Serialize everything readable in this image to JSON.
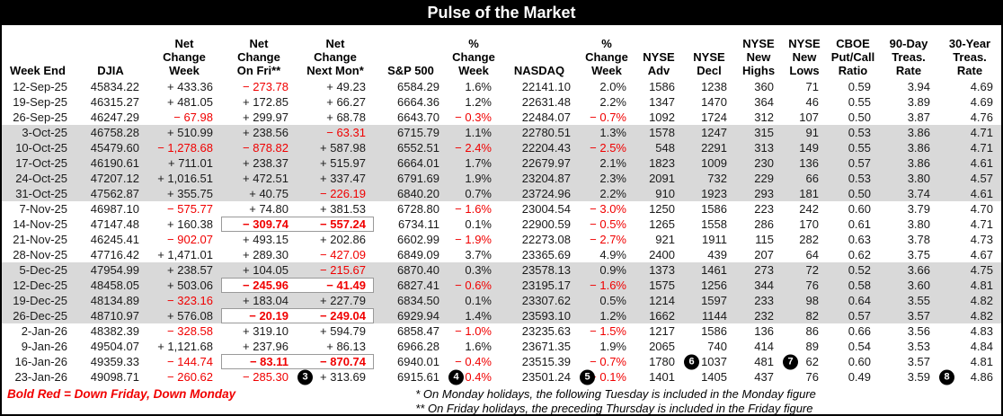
{
  "title": "Pulse of the Market",
  "legend": "Bold Red = Down Friday, Down Monday",
  "footnotes": [
    "* On Monday holidays, the following Tuesday is included in the Monday figure",
    "** On Friday holidays, the preceding Thursday is included in the Friday figure"
  ],
  "colors": {
    "negative_red": "#f00000",
    "month_shade": "#d9d9d9",
    "title_bar_bg": "#000000",
    "title_bar_fg": "#ffffff",
    "badge_bg": "#000000",
    "dfdm_box_border": "#9a9a9a"
  },
  "table": {
    "columns": [
      {
        "id": "week-end",
        "label": "Week End"
      },
      {
        "id": "djia",
        "label": "DJIA"
      },
      {
        "id": "net-change-week",
        "label": "Net\nChange\nWeek"
      },
      {
        "id": "net-change-on-fri",
        "label": "Net\nChange\nOn Fri**"
      },
      {
        "id": "net-change-next-mon",
        "label": "Net\nChange\nNext Mon*"
      },
      {
        "id": "sp500",
        "label": "S&P 500"
      },
      {
        "id": "sp500-pct-change-week",
        "label": "%\nChange\nWeek"
      },
      {
        "id": "nasdaq",
        "label": "NASDAQ"
      },
      {
        "id": "nasdaq-pct-change-week",
        "label": "%\nChange\nWeek"
      },
      {
        "id": "nyse-adv",
        "label": "NYSE\nAdv"
      },
      {
        "id": "nyse-decl",
        "label": "NYSE\nDecl"
      },
      {
        "id": "nyse-new-highs",
        "label": "NYSE\nNew\nHighs"
      },
      {
        "id": "nyse-new-lows",
        "label": "NYSE\nNew\nLows"
      },
      {
        "id": "cboe-put-call-ratio",
        "label": "CBOE\nPut/Call\nRatio"
      },
      {
        "id": "treas-90-day",
        "label": "90-Day\nTreas.\nRate"
      },
      {
        "id": "treas-30-year",
        "label": "30-Year\nTreas.\nRate"
      }
    ],
    "rows": [
      {
        "date": "12-Sep-25",
        "shade": false,
        "cells": [
          "45834.22",
          "+ 433.36",
          "− 273.78",
          "+ 49.23",
          "6584.29",
          "1.6%",
          "22141.10",
          "2.0%",
          "1586",
          "1238",
          "360",
          "71",
          "0.59",
          "3.94",
          "4.69"
        ]
      },
      {
        "date": "19-Sep-25",
        "shade": false,
        "cells": [
          "46315.27",
          "+ 481.05",
          "+ 172.85",
          "+ 66.27",
          "6664.36",
          "1.2%",
          "22631.48",
          "2.2%",
          "1347",
          "1470",
          "364",
          "46",
          "0.55",
          "3.89",
          "4.69"
        ]
      },
      {
        "date": "26-Sep-25",
        "shade": false,
        "cells": [
          "46247.29",
          "− 67.98",
          "+ 299.97",
          "+ 68.78",
          "6643.70",
          "− 0.3%",
          "22484.07",
          "− 0.7%",
          "1092",
          "1724",
          "312",
          "107",
          "0.50",
          "3.87",
          "4.76"
        ]
      },
      {
        "date": "3-Oct-25",
        "shade": true,
        "cells": [
          "46758.28",
          "+ 510.99",
          "+ 238.56",
          "− 63.31",
          "6715.79",
          "1.1%",
          "22780.51",
          "1.3%",
          "1578",
          "1247",
          "315",
          "91",
          "0.53",
          "3.86",
          "4.71"
        ]
      },
      {
        "date": "10-Oct-25",
        "shade": true,
        "cells": [
          "45479.60",
          "− 1,278.68",
          "− 878.82",
          "+ 587.98",
          "6552.51",
          "− 2.4%",
          "22204.43",
          "− 2.5%",
          "548",
          "2291",
          "313",
          "149",
          "0.55",
          "3.86",
          "4.71"
        ]
      },
      {
        "date": "17-Oct-25",
        "shade": true,
        "cells": [
          "46190.61",
          "+ 711.01",
          "+ 238.37",
          "+ 515.97",
          "6664.01",
          "1.7%",
          "22679.97",
          "2.1%",
          "1823",
          "1009",
          "230",
          "136",
          "0.57",
          "3.86",
          "4.61"
        ]
      },
      {
        "date": "24-Oct-25",
        "shade": true,
        "cells": [
          "47207.12",
          "+ 1,016.51",
          "+ 472.51",
          "+ 337.47",
          "6791.69",
          "1.9%",
          "23204.87",
          "2.3%",
          "2091",
          "732",
          "229",
          "66",
          "0.53",
          "3.80",
          "4.57"
        ]
      },
      {
        "date": "31-Oct-25",
        "shade": true,
        "cells": [
          "47562.87",
          "+ 355.75",
          "+ 40.75",
          "− 226.19",
          "6840.20",
          "0.7%",
          "23724.96",
          "2.2%",
          "910",
          "1923",
          "293",
          "181",
          "0.50",
          "3.74",
          "4.61"
        ]
      },
      {
        "date": "7-Nov-25",
        "shade": false,
        "cells": [
          "46987.10",
          "− 575.77",
          "+ 74.80",
          "+ 381.53",
          "6728.80",
          "− 1.6%",
          "23004.54",
          "− 3.0%",
          "1250",
          "1586",
          "223",
          "242",
          "0.60",
          "3.79",
          "4.70"
        ]
      },
      {
        "date": "14-Nov-25",
        "shade": false,
        "cells": [
          "47147.48",
          "+ 160.38",
          {
            "t": "− 309.74",
            "box": "l"
          },
          {
            "t": "− 557.24",
            "box": "r"
          },
          "6734.11",
          "0.1%",
          "22900.59",
          "− 0.5%",
          "1265",
          "1558",
          "286",
          "170",
          "0.61",
          "3.80",
          "4.71"
        ]
      },
      {
        "date": "21-Nov-25",
        "shade": false,
        "cells": [
          "46245.41",
          "− 902.07",
          "+ 493.15",
          "+ 202.86",
          "6602.99",
          "− 1.9%",
          "22273.08",
          "− 2.7%",
          "921",
          "1911",
          "115",
          "282",
          "0.63",
          "3.78",
          "4.73"
        ]
      },
      {
        "date": "28-Nov-25",
        "shade": false,
        "cells": [
          "47716.42",
          "+ 1,471.01",
          "+ 289.30",
          "− 427.09",
          "6849.09",
          "3.7%",
          "23365.69",
          "4.9%",
          "2400",
          "439",
          "207",
          "64",
          "0.62",
          "3.75",
          "4.67"
        ]
      },
      {
        "date": "5-Dec-25",
        "shade": true,
        "cells": [
          "47954.99",
          "+ 238.57",
          "+ 104.05",
          "− 215.67",
          "6870.40",
          "0.3%",
          "23578.13",
          "0.9%",
          "1373",
          "1461",
          "273",
          "72",
          "0.52",
          "3.66",
          "4.75"
        ]
      },
      {
        "date": "12-Dec-25",
        "shade": true,
        "cells": [
          "48458.05",
          "+ 503.06",
          {
            "t": "− 245.96",
            "box": "l"
          },
          {
            "t": "− 41.49",
            "box": "r"
          },
          "6827.41",
          "− 0.6%",
          "23195.17",
          "− 1.6%",
          "1575",
          "1256",
          "344",
          "76",
          "0.58",
          "3.60",
          "4.81"
        ]
      },
      {
        "date": "19-Dec-25",
        "shade": true,
        "cells": [
          "48134.89",
          "− 323.16",
          "+ 183.04",
          "+ 227.79",
          "6834.50",
          "0.1%",
          "23307.62",
          "0.5%",
          "1214",
          "1597",
          "233",
          "98",
          "0.64",
          "3.55",
          "4.82"
        ]
      },
      {
        "date": "26-Dec-25",
        "shade": true,
        "cells": [
          "48710.97",
          "+ 576.08",
          {
            "t": "− 20.19",
            "box": "l"
          },
          {
            "t": "− 249.04",
            "box": "r"
          },
          "6929.94",
          "1.4%",
          "23593.10",
          "1.2%",
          "1662",
          "1144",
          "232",
          "82",
          "0.57",
          "3.57",
          "4.82"
        ]
      },
      {
        "date": "2-Jan-26",
        "shade": false,
        "cells": [
          "48382.39",
          "− 328.58",
          "+ 319.10",
          "+ 594.79",
          "6858.47",
          "− 1.0%",
          "23235.63",
          "− 1.5%",
          "1217",
          "1586",
          "136",
          "86",
          "0.66",
          "3.56",
          "4.83"
        ]
      },
      {
        "date": "9-Jan-26",
        "shade": false,
        "cells": [
          "49504.07",
          "+ 1,121.68",
          "+ 237.96",
          "+ 86.13",
          "6966.28",
          "1.6%",
          "23671.35",
          "1.9%",
          "2065",
          "740",
          "414",
          "89",
          "0.54",
          "3.53",
          "4.84"
        ]
      },
      {
        "date": "16-Jan-26",
        "shade": false,
        "cells": [
          "49359.33",
          "− 144.74",
          {
            "t": "− 83.11",
            "box": "l"
          },
          {
            "t": "− 870.74",
            "box": "r"
          },
          "6940.01",
          "− 0.4%",
          "23515.39",
          "− 0.7%",
          "1780",
          {
            "t": "1037",
            "badge": "6"
          },
          "481",
          {
            "t": "62",
            "badge": "7"
          },
          "0.60",
          "3.57",
          "4.81"
        ]
      },
      {
        "date": "23-Jan-26",
        "shade": false,
        "cells": [
          "49098.71",
          "− 260.62",
          "− 285.30",
          {
            "t": "+ 313.69",
            "badge": "3"
          },
          "6915.61",
          {
            "t": "− 0.4%",
            "badge": "4"
          },
          "23501.24",
          {
            "t": "− 0.1%",
            "badge": "5"
          },
          "1401",
          "1405",
          "437",
          "76",
          "0.49",
          "3.59",
          {
            "t": "4.86",
            "badge": "8"
          }
        ]
      }
    ]
  }
}
